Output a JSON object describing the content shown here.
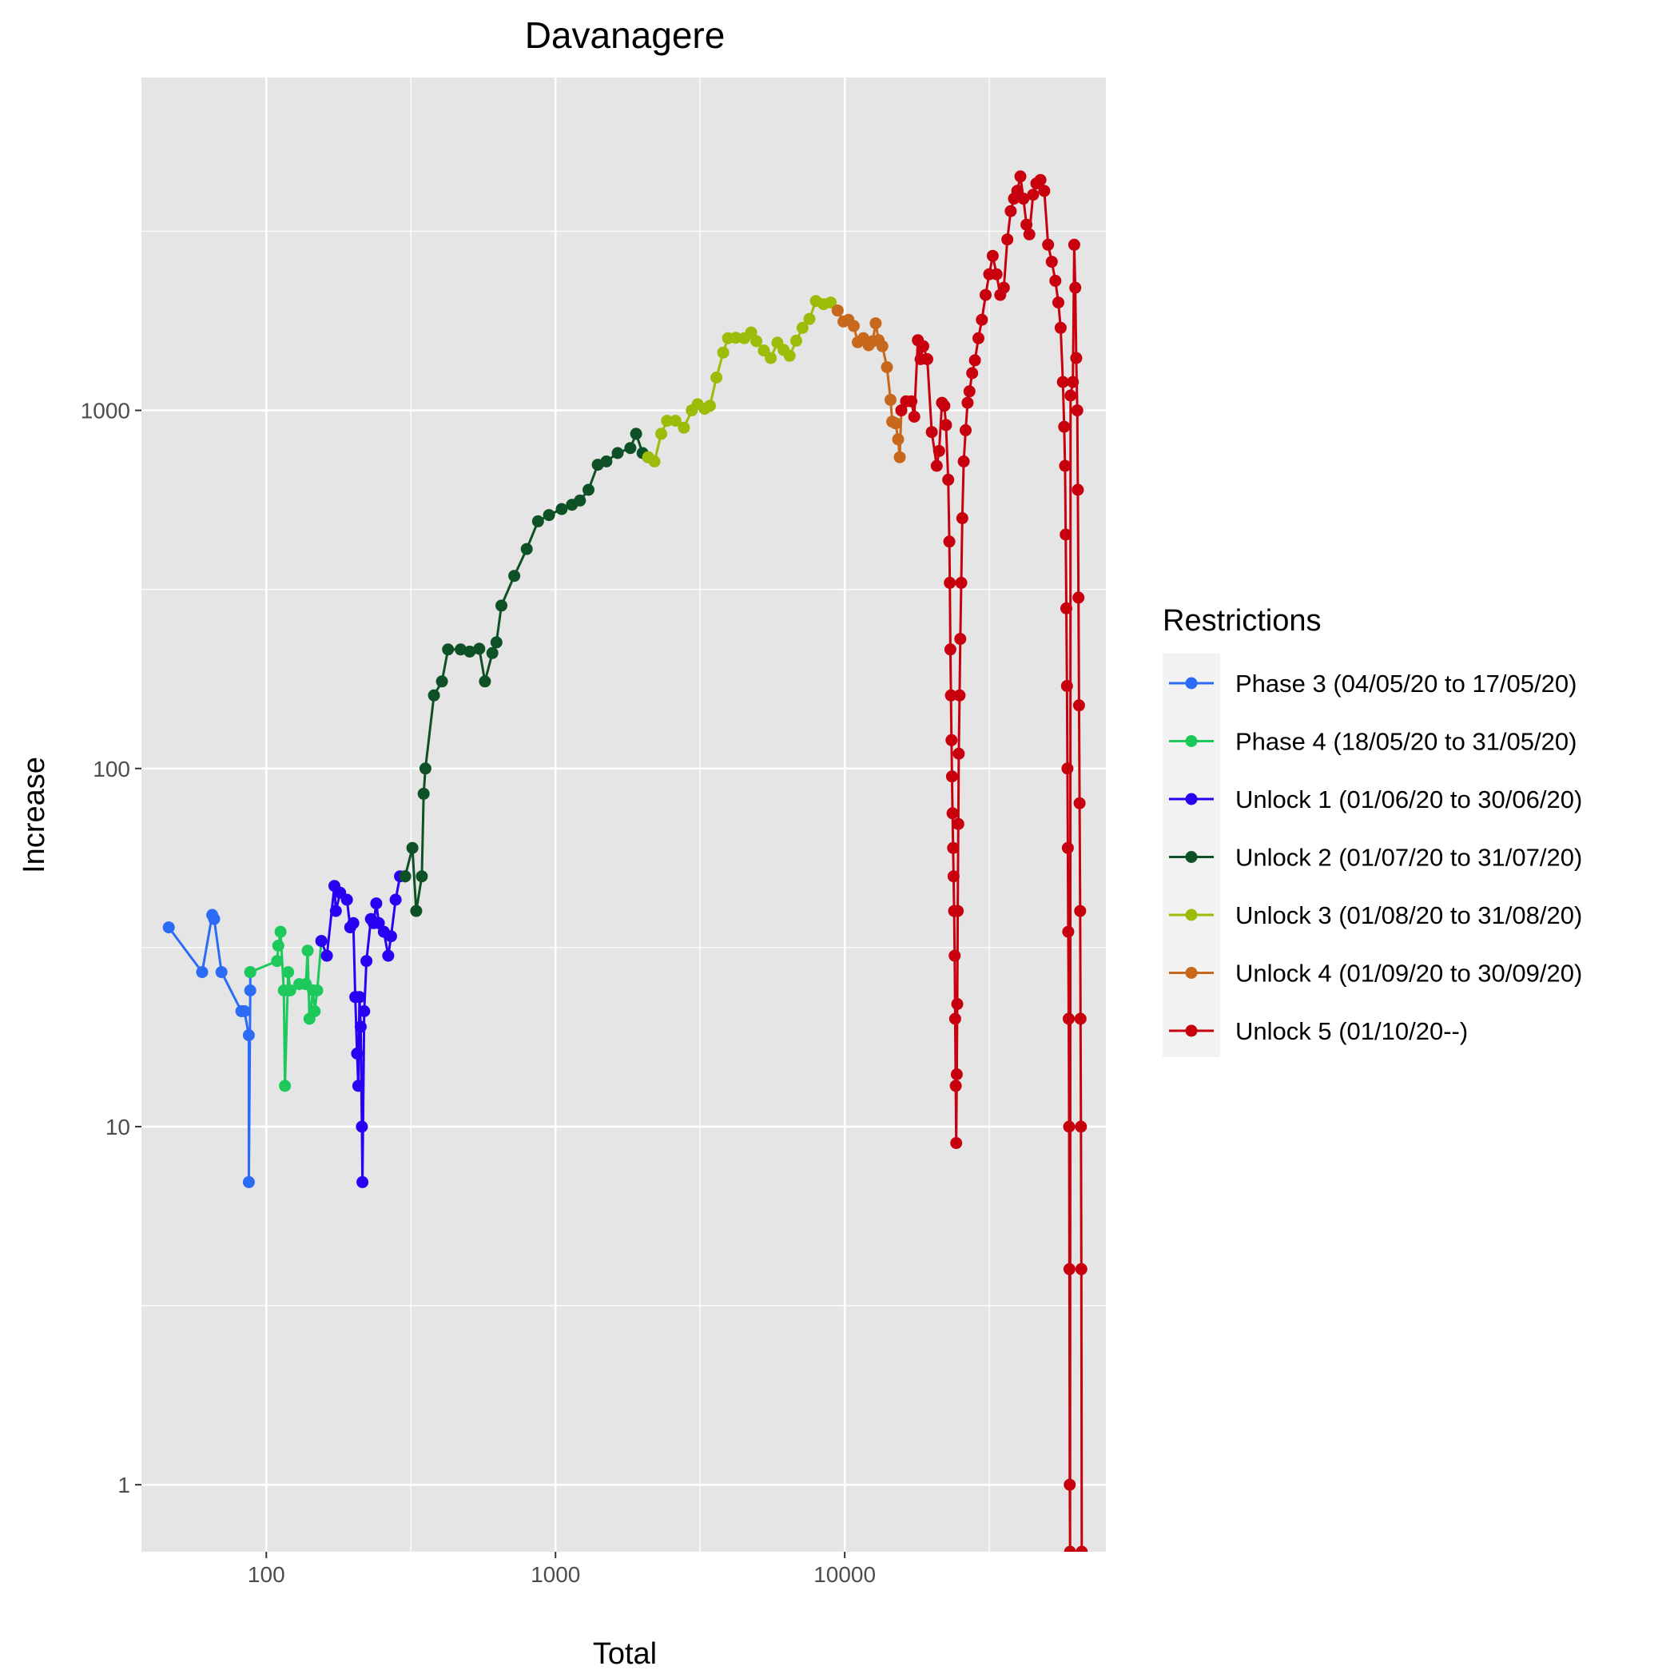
{
  "chart_data": {
    "type": "line",
    "title": "Davanagere",
    "xlabel": "Total",
    "ylabel": "Increase",
    "x_scale": "log10",
    "y_scale": "log10",
    "xlim": [
      37,
      80000
    ],
    "ylim": [
      0.65,
      8500
    ],
    "x_ticks": [
      100,
      1000,
      10000
    ],
    "x_tick_labels": [
      "100",
      "1000",
      "10000"
    ],
    "y_ticks": [
      1,
      10,
      100,
      1000
    ],
    "y_tick_labels": [
      "1",
      "10",
      "100",
      "1000"
    ],
    "grid": true,
    "legend_title": "Restrictions",
    "legend_position": "right",
    "series": [
      {
        "name": "Phase 3 (04/05/20 to 17/05/20)",
        "color": "#2c6bf5",
        "points": [
          [
            46,
            36
          ],
          [
            60,
            27
          ],
          [
            65,
            39
          ],
          [
            66,
            38
          ],
          [
            70,
            27
          ],
          [
            82,
            21
          ],
          [
            84,
            21
          ],
          [
            87,
            18
          ],
          [
            87,
            7
          ],
          [
            88,
            24
          ],
          [
            88,
            27
          ]
        ]
      },
      {
        "name": "Phase 4 (18/05/20 to 31/05/20)",
        "color": "#1ec95c",
        "points": [
          [
            88,
            27
          ],
          [
            109,
            29
          ],
          [
            110,
            32
          ],
          [
            112,
            35
          ],
          [
            115,
            24
          ],
          [
            116,
            13
          ],
          [
            119,
            27
          ],
          [
            121,
            24
          ],
          [
            130,
            25
          ],
          [
            137,
            25
          ],
          [
            139,
            31
          ],
          [
            141,
            20
          ],
          [
            145,
            24
          ],
          [
            147,
            21
          ],
          [
            150,
            24
          ],
          [
            155,
            33
          ]
        ]
      },
      {
        "name": "Unlock 1 (01/06/20 to 30/06/20)",
        "color": "#2a00f2",
        "points": [
          [
            155,
            33
          ],
          [
            162,
            30
          ],
          [
            172,
            47
          ],
          [
            174,
            40
          ],
          [
            180,
            45
          ],
          [
            190,
            43
          ],
          [
            195,
            36
          ],
          [
            200,
            37
          ],
          [
            203,
            23
          ],
          [
            206,
            16
          ],
          [
            208,
            13
          ],
          [
            210,
            23
          ],
          [
            212,
            19
          ],
          [
            214,
            10
          ],
          [
            215,
            7
          ],
          [
            218,
            21
          ],
          [
            222,
            29
          ],
          [
            230,
            38
          ],
          [
            235,
            37
          ],
          [
            240,
            42
          ],
          [
            245,
            37
          ],
          [
            255,
            35
          ],
          [
            264,
            30
          ],
          [
            270,
            34
          ],
          [
            280,
            43
          ],
          [
            290,
            50
          ],
          [
            302,
            50
          ]
        ]
      },
      {
        "name": "Unlock 2 (01/07/20 to 31/07/20)",
        "color": "#0f5126",
        "points": [
          [
            302,
            50
          ],
          [
            320,
            60
          ],
          [
            330,
            40
          ],
          [
            345,
            50
          ],
          [
            350,
            85
          ],
          [
            355,
            100
          ],
          [
            380,
            160
          ],
          [
            405,
            175
          ],
          [
            425,
            215
          ],
          [
            470,
            215
          ],
          [
            505,
            212
          ],
          [
            545,
            216
          ],
          [
            570,
            175
          ],
          [
            605,
            210
          ],
          [
            625,
            225
          ],
          [
            650,
            285
          ],
          [
            720,
            345
          ],
          [
            795,
            410
          ],
          [
            870,
            490
          ],
          [
            950,
            510
          ],
          [
            1050,
            530
          ],
          [
            1140,
            545
          ],
          [
            1215,
            560
          ],
          [
            1300,
            600
          ],
          [
            1400,
            705
          ],
          [
            1500,
            720
          ],
          [
            1640,
            760
          ],
          [
            1815,
            785
          ],
          [
            1900,
            860
          ],
          [
            2000,
            760
          ],
          [
            2090,
            740
          ]
        ]
      },
      {
        "name": "Unlock 3 (01/08/20 to 31/08/20)",
        "color": "#9cbc0a",
        "points": [
          [
            2090,
            740
          ],
          [
            2200,
            720
          ],
          [
            2320,
            860
          ],
          [
            2430,
            935
          ],
          [
            2600,
            935
          ],
          [
            2780,
            895
          ],
          [
            2960,
            1000
          ],
          [
            3100,
            1040
          ],
          [
            3280,
            1010
          ],
          [
            3420,
            1030
          ],
          [
            3600,
            1235
          ],
          [
            3800,
            1450
          ],
          [
            3950,
            1590
          ],
          [
            4200,
            1595
          ],
          [
            4500,
            1590
          ],
          [
            4750,
            1650
          ],
          [
            4950,
            1560
          ],
          [
            5250,
            1470
          ],
          [
            5550,
            1400
          ],
          [
            5850,
            1545
          ],
          [
            6150,
            1475
          ],
          [
            6450,
            1420
          ],
          [
            6800,
            1565
          ],
          [
            7150,
            1700
          ],
          [
            7550,
            1800
          ],
          [
            7950,
            2020
          ],
          [
            8450,
            1980
          ],
          [
            8950,
            2000
          ],
          [
            9450,
            1900
          ]
        ]
      },
      {
        "name": "Unlock 4 (01/09/20 to 30/09/20)",
        "color": "#c7681c",
        "points": [
          [
            9450,
            1900
          ],
          [
            9900,
            1770
          ],
          [
            10300,
            1790
          ],
          [
            10750,
            1720
          ],
          [
            11100,
            1550
          ],
          [
            11600,
            1590
          ],
          [
            12100,
            1520
          ],
          [
            12500,
            1560
          ],
          [
            12800,
            1750
          ],
          [
            13100,
            1570
          ],
          [
            13500,
            1510
          ],
          [
            14000,
            1320
          ],
          [
            14400,
            1070
          ],
          [
            14600,
            930
          ],
          [
            15000,
            920
          ],
          [
            15300,
            830
          ],
          [
            15500,
            740
          ],
          [
            15700,
            1000
          ]
        ]
      },
      {
        "name": "Unlock 5 (01/10/20--)",
        "color": "#c8000e",
        "points": [
          [
            15700,
            1000
          ],
          [
            16300,
            1060
          ],
          [
            17000,
            1060
          ],
          [
            17400,
            960
          ],
          [
            17900,
            1570
          ],
          [
            18300,
            1390
          ],
          [
            18700,
            1510
          ],
          [
            19300,
            1390
          ],
          [
            20000,
            870
          ],
          [
            20800,
            700
          ],
          [
            21200,
            770
          ],
          [
            21700,
            1050
          ],
          [
            22100,
            1030
          ],
          [
            22400,
            910
          ],
          [
            22800,
            640
          ],
          [
            23000,
            430
          ],
          [
            23100,
            330
          ],
          [
            23200,
            215
          ],
          [
            23300,
            160
          ],
          [
            23400,
            120
          ],
          [
            23500,
            95
          ],
          [
            23600,
            75
          ],
          [
            23700,
            60
          ],
          [
            23800,
            50
          ],
          [
            23900,
            40
          ],
          [
            24000,
            30
          ],
          [
            24100,
            20
          ],
          [
            24200,
            13
          ],
          [
            24300,
            9
          ],
          [
            24400,
            14
          ],
          [
            24500,
            22
          ],
          [
            24600,
            40
          ],
          [
            24700,
            70
          ],
          [
            24800,
            110
          ],
          [
            24950,
            160
          ],
          [
            25100,
            230
          ],
          [
            25300,
            330
          ],
          [
            25500,
            500
          ],
          [
            25800,
            720
          ],
          [
            26200,
            880
          ],
          [
            26600,
            1050
          ],
          [
            27000,
            1130
          ],
          [
            27600,
            1270
          ],
          [
            28200,
            1380
          ],
          [
            29000,
            1590
          ],
          [
            29800,
            1790
          ],
          [
            30700,
            2100
          ],
          [
            31600,
            2400
          ],
          [
            32500,
            2700
          ],
          [
            33500,
            2400
          ],
          [
            34500,
            2100
          ],
          [
            35500,
            2200
          ],
          [
            36500,
            3000
          ],
          [
            37500,
            3600
          ],
          [
            38500,
            3900
          ],
          [
            39500,
            4100
          ],
          [
            40500,
            4500
          ],
          [
            41500,
            3900
          ],
          [
            42500,
            3300
          ],
          [
            43500,
            3100
          ],
          [
            44800,
            4000
          ],
          [
            46000,
            4300
          ],
          [
            47500,
            4400
          ],
          [
            49000,
            4100
          ],
          [
            50500,
            2900
          ],
          [
            52000,
            2600
          ],
          [
            53500,
            2300
          ],
          [
            54800,
            2000
          ],
          [
            55800,
            1700
          ],
          [
            56800,
            1200
          ],
          [
            57400,
            900
          ],
          [
            57800,
            700
          ],
          [
            58100,
            450
          ],
          [
            58400,
            280
          ],
          [
            58700,
            170
          ],
          [
            58900,
            100
          ],
          [
            59100,
            60
          ],
          [
            59300,
            35
          ],
          [
            59500,
            20
          ],
          [
            59700,
            10
          ],
          [
            59850,
            4
          ],
          [
            60000,
            1
          ],
          [
            60150,
            0.65
          ],
          [
            60400,
            1100
          ],
          [
            61500,
            1200
          ],
          [
            62200,
            2900
          ],
          [
            62700,
            2200
          ],
          [
            63200,
            1400
          ],
          [
            63700,
            1000
          ],
          [
            64000,
            600
          ],
          [
            64300,
            300
          ],
          [
            64600,
            150
          ],
          [
            64900,
            80
          ],
          [
            65200,
            40
          ],
          [
            65400,
            20
          ],
          [
            65600,
            10
          ],
          [
            65800,
            4
          ],
          [
            66000,
            0.65
          ]
        ]
      }
    ]
  }
}
